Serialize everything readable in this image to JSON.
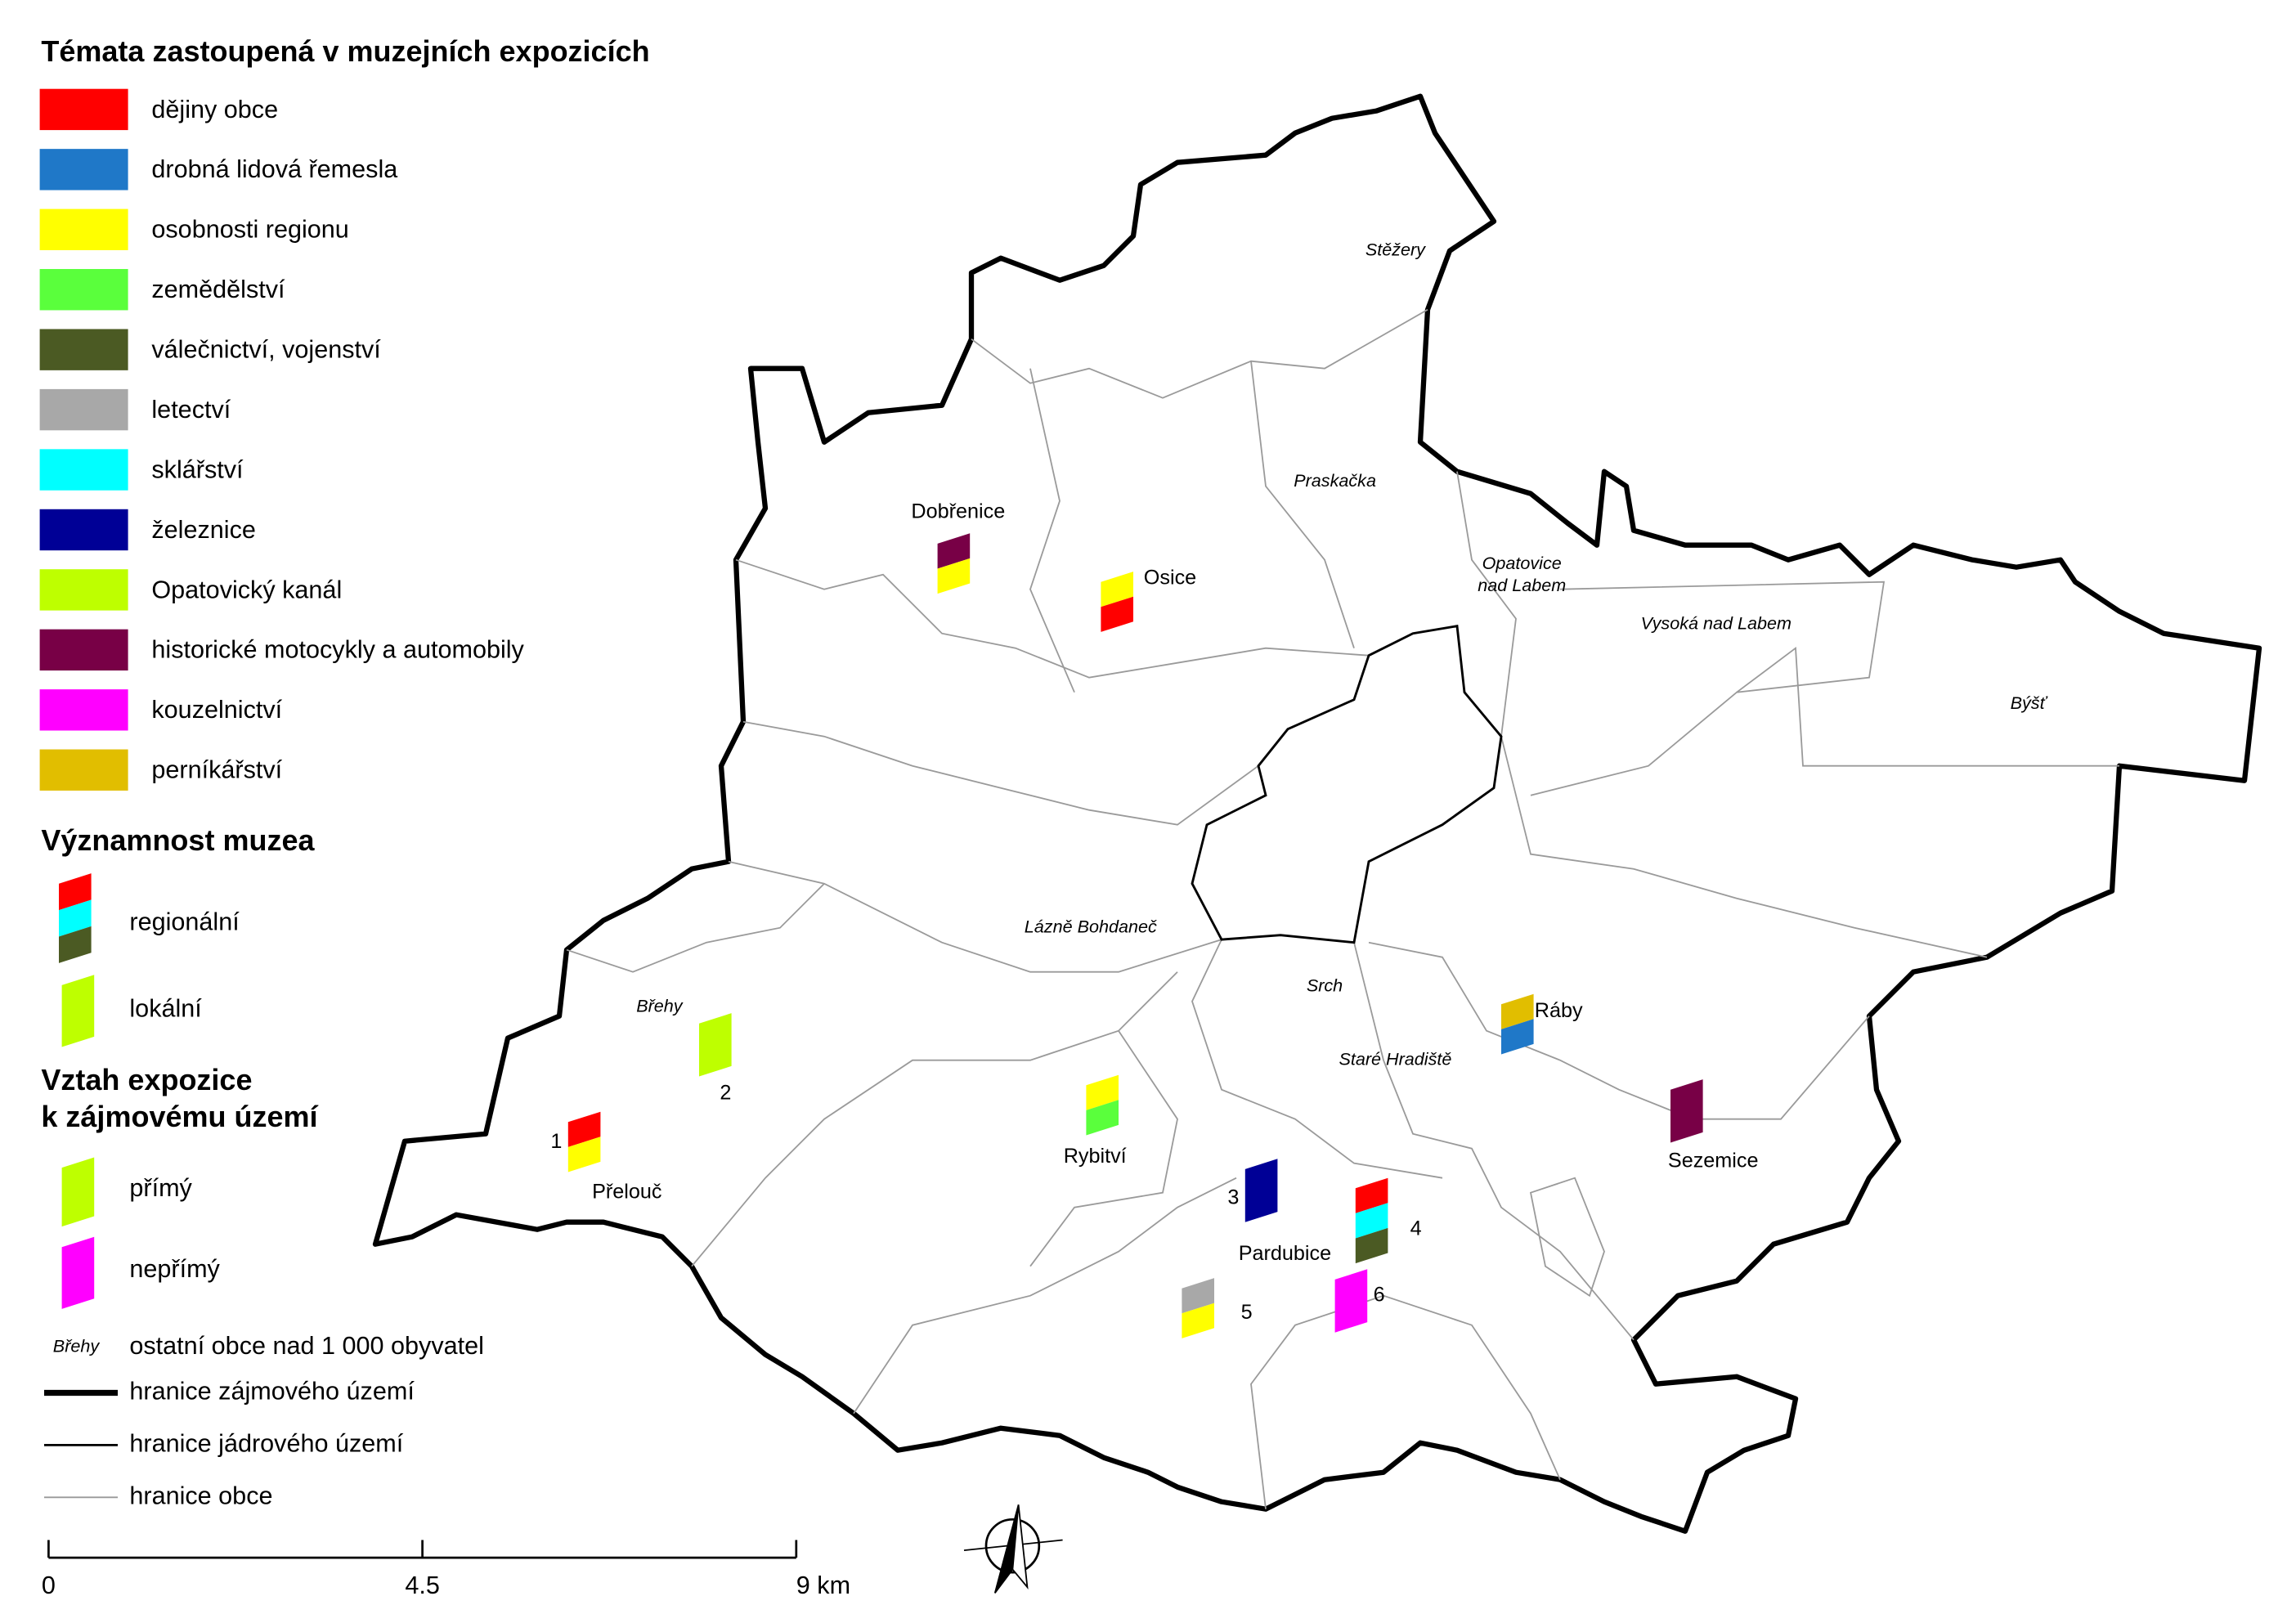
{
  "legend": {
    "themes_title": "Témata zastoupená v muzejních expozicích",
    "themes": [
      {
        "label": "dějiny obce",
        "color": "#ff0000"
      },
      {
        "label": "drobná lidová řemesla",
        "color": "#1f78c8"
      },
      {
        "label": "osobnosti regionu",
        "color": "#ffff00"
      },
      {
        "label": "zemědělství",
        "color": "#5aff3c"
      },
      {
        "label": "válečnictví, vojenství",
        "color": "#4b5a23"
      },
      {
        "label": "letectví",
        "color": "#a8a8a8"
      },
      {
        "label": "sklářství",
        "color": "#00ffff"
      },
      {
        "label": "železnice",
        "color": "#000096"
      },
      {
        "label": "Opatovický kanál",
        "color": "#beff00"
      },
      {
        "label": "historické motocykly a automobily",
        "color": "#780046"
      },
      {
        "label": "kouzelnictví",
        "color": "#ff00ff"
      },
      {
        "label": "perníkářství",
        "color": "#e1be00"
      }
    ],
    "significance_title": "Významnost muzea",
    "significance": [
      {
        "label": "regionální",
        "colors": [
          "#ff0000",
          "#00ffff",
          "#4b5a23"
        ]
      },
      {
        "label": "lokální",
        "colors": [
          "#beff00"
        ]
      }
    ],
    "relation_title": [
      "Vztah expozice",
      "k zájmovému území"
    ],
    "relation": [
      {
        "label": "přímý",
        "colors": [
          "#beff00"
        ]
      },
      {
        "label": "nepřímý",
        "colors": [
          "#ff00ff"
        ]
      }
    ],
    "other_sample": "Břehy",
    "other_label": "ostatní obce nad 1 000 obyvatel",
    "lines": [
      {
        "label": "hranice zájmového území",
        "color": "#000000",
        "width": 4
      },
      {
        "label": "hranice jádrového území",
        "color": "#000000",
        "width": 1.5
      },
      {
        "label": "hranice obce",
        "color": "#999999",
        "width": 1
      }
    ]
  },
  "scale": {
    "labels": [
      "0",
      "4.5",
      "9 km"
    ]
  },
  "towns": [
    "Dobřenice",
    "Osice",
    "Ráby",
    "Sezemice",
    "Přelouč",
    "Rybitví",
    "Pardubice"
  ],
  "other_towns": [
    "Stěžery",
    "Praskačka",
    "Opatovice",
    "nad Labem",
    "Vysoká nad Labem",
    "Býšť",
    "Lázně Bohdaneč",
    "Srch",
    "Staré Hradiště",
    "Břehy"
  ],
  "museums": [
    {
      "colors": [
        "#780046",
        "#ffff00"
      ]
    },
    {
      "colors": [
        "#ffff00",
        "#ff0000"
      ]
    },
    {
      "colors": [
        "#e1be00",
        "#1f78c8"
      ]
    },
    {
      "colors": [
        "#780046"
      ]
    },
    {
      "number": "1",
      "colors": [
        "#ff0000",
        "#ffff00"
      ]
    },
    {
      "number": "2",
      "colors": [
        "#beff00"
      ]
    },
    {
      "colors": [
        "#ffff00",
        "#5aff3c"
      ]
    },
    {
      "number": "3",
      "colors": [
        "#000096"
      ]
    },
    {
      "number": "4",
      "colors": [
        "#ff0000",
        "#00ffff",
        "#4b5a23"
      ]
    },
    {
      "number": "5",
      "colors": [
        "#a8a8a8",
        "#ffff00"
      ]
    },
    {
      "number": "6",
      "colors": [
        "#ff00ff"
      ]
    }
  ]
}
